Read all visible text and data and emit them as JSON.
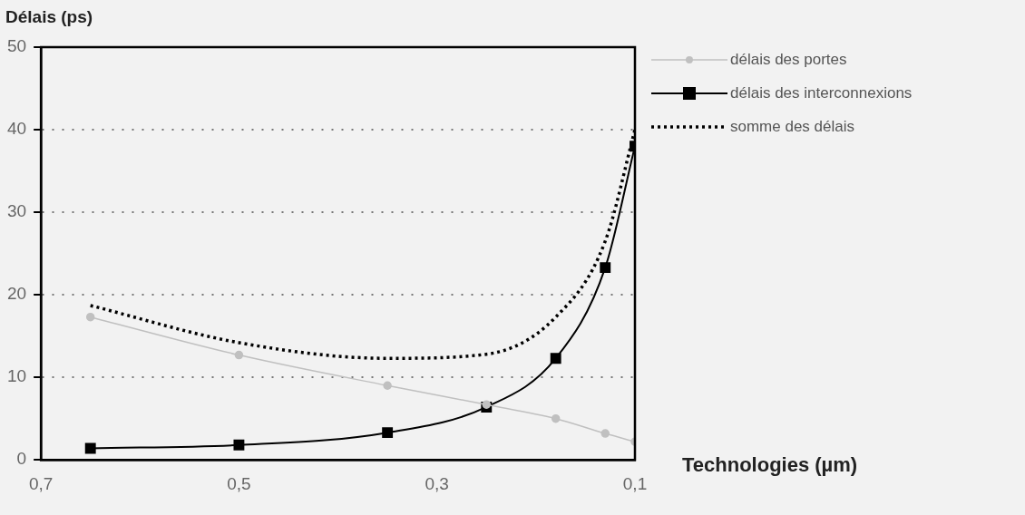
{
  "chart_data": {
    "type": "line",
    "ylabel": "Délais (ps)",
    "xlabel": "Technologies (µm)",
    "xlim": [
      0.7,
      0.1
    ],
    "xticks": [
      {
        "value": 0.7,
        "label": "0,7"
      },
      {
        "value": 0.5,
        "label": "0,5"
      },
      {
        "value": 0.3,
        "label": "0,3"
      },
      {
        "value": 0.1,
        "label": "0,1"
      }
    ],
    "ylim": [
      0,
      50
    ],
    "yticks": [
      0,
      10,
      20,
      30,
      40,
      50
    ],
    "grid": "y",
    "legend": "right",
    "series": [
      {
        "name": "délais des portes",
        "color": "#c0c0c0",
        "marker": "circle",
        "line_style": "solid",
        "x": [
          0.65,
          0.5,
          0.35,
          0.25,
          0.18,
          0.13,
          0.1
        ],
        "values": [
          17.3,
          12.7,
          9,
          6.7,
          5,
          3.2,
          2.2
        ]
      },
      {
        "name": "délais des interconnexions",
        "color": "#000000",
        "marker": "square",
        "line_style": "solid",
        "x": [
          0.65,
          0.5,
          0.35,
          0.25,
          0.18,
          0.13,
          0.1
        ],
        "values": [
          1.4,
          1.8,
          3.3,
          6.4,
          12.3,
          23.3,
          38
        ]
      },
      {
        "name": "somme des délais",
        "color": "#000000",
        "marker": "none",
        "line_style": "dotted",
        "x": [
          0.65,
          0.5,
          0.35,
          0.25,
          0.18,
          0.13,
          0.1
        ],
        "values": [
          18.7,
          14.2,
          12.3,
          12.8,
          17.3,
          26.5,
          40
        ]
      }
    ]
  }
}
